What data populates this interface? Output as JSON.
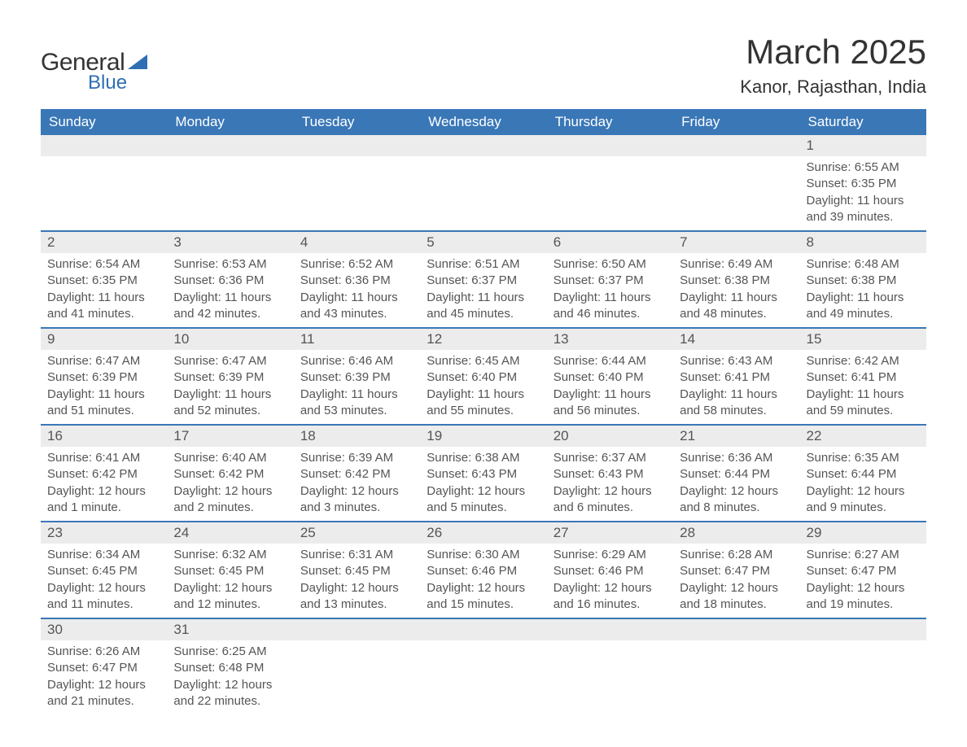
{
  "logo": {
    "text1": "General",
    "text2": "Blue"
  },
  "title": "March 2025",
  "location": "Kanor, Rajasthan, India",
  "colors": {
    "header_bg": "#3a77b7",
    "header_text": "#ffffff",
    "row_border": "#3a77b7",
    "daynum_bg": "#ececec",
    "text": "#555555",
    "logo_accent": "#2f6eb3"
  },
  "weekdays": [
    "Sunday",
    "Monday",
    "Tuesday",
    "Wednesday",
    "Thursday",
    "Friday",
    "Saturday"
  ],
  "weeks": [
    [
      null,
      null,
      null,
      null,
      null,
      null,
      {
        "n": "1",
        "sr": "6:55 AM",
        "ss": "6:35 PM",
        "dl": "11 hours and 39 minutes."
      }
    ],
    [
      {
        "n": "2",
        "sr": "6:54 AM",
        "ss": "6:35 PM",
        "dl": "11 hours and 41 minutes."
      },
      {
        "n": "3",
        "sr": "6:53 AM",
        "ss": "6:36 PM",
        "dl": "11 hours and 42 minutes."
      },
      {
        "n": "4",
        "sr": "6:52 AM",
        "ss": "6:36 PM",
        "dl": "11 hours and 43 minutes."
      },
      {
        "n": "5",
        "sr": "6:51 AM",
        "ss": "6:37 PM",
        "dl": "11 hours and 45 minutes."
      },
      {
        "n": "6",
        "sr": "6:50 AM",
        "ss": "6:37 PM",
        "dl": "11 hours and 46 minutes."
      },
      {
        "n": "7",
        "sr": "6:49 AM",
        "ss": "6:38 PM",
        "dl": "11 hours and 48 minutes."
      },
      {
        "n": "8",
        "sr": "6:48 AM",
        "ss": "6:38 PM",
        "dl": "11 hours and 49 minutes."
      }
    ],
    [
      {
        "n": "9",
        "sr": "6:47 AM",
        "ss": "6:39 PM",
        "dl": "11 hours and 51 minutes."
      },
      {
        "n": "10",
        "sr": "6:47 AM",
        "ss": "6:39 PM",
        "dl": "11 hours and 52 minutes."
      },
      {
        "n": "11",
        "sr": "6:46 AM",
        "ss": "6:39 PM",
        "dl": "11 hours and 53 minutes."
      },
      {
        "n": "12",
        "sr": "6:45 AM",
        "ss": "6:40 PM",
        "dl": "11 hours and 55 minutes."
      },
      {
        "n": "13",
        "sr": "6:44 AM",
        "ss": "6:40 PM",
        "dl": "11 hours and 56 minutes."
      },
      {
        "n": "14",
        "sr": "6:43 AM",
        "ss": "6:41 PM",
        "dl": "11 hours and 58 minutes."
      },
      {
        "n": "15",
        "sr": "6:42 AM",
        "ss": "6:41 PM",
        "dl": "11 hours and 59 minutes."
      }
    ],
    [
      {
        "n": "16",
        "sr": "6:41 AM",
        "ss": "6:42 PM",
        "dl": "12 hours and 1 minute."
      },
      {
        "n": "17",
        "sr": "6:40 AM",
        "ss": "6:42 PM",
        "dl": "12 hours and 2 minutes."
      },
      {
        "n": "18",
        "sr": "6:39 AM",
        "ss": "6:42 PM",
        "dl": "12 hours and 3 minutes."
      },
      {
        "n": "19",
        "sr": "6:38 AM",
        "ss": "6:43 PM",
        "dl": "12 hours and 5 minutes."
      },
      {
        "n": "20",
        "sr": "6:37 AM",
        "ss": "6:43 PM",
        "dl": "12 hours and 6 minutes."
      },
      {
        "n": "21",
        "sr": "6:36 AM",
        "ss": "6:44 PM",
        "dl": "12 hours and 8 minutes."
      },
      {
        "n": "22",
        "sr": "6:35 AM",
        "ss": "6:44 PM",
        "dl": "12 hours and 9 minutes."
      }
    ],
    [
      {
        "n": "23",
        "sr": "6:34 AM",
        "ss": "6:45 PM",
        "dl": "12 hours and 11 minutes."
      },
      {
        "n": "24",
        "sr": "6:32 AM",
        "ss": "6:45 PM",
        "dl": "12 hours and 12 minutes."
      },
      {
        "n": "25",
        "sr": "6:31 AM",
        "ss": "6:45 PM",
        "dl": "12 hours and 13 minutes."
      },
      {
        "n": "26",
        "sr": "6:30 AM",
        "ss": "6:46 PM",
        "dl": "12 hours and 15 minutes."
      },
      {
        "n": "27",
        "sr": "6:29 AM",
        "ss": "6:46 PM",
        "dl": "12 hours and 16 minutes."
      },
      {
        "n": "28",
        "sr": "6:28 AM",
        "ss": "6:47 PM",
        "dl": "12 hours and 18 minutes."
      },
      {
        "n": "29",
        "sr": "6:27 AM",
        "ss": "6:47 PM",
        "dl": "12 hours and 19 minutes."
      }
    ],
    [
      {
        "n": "30",
        "sr": "6:26 AM",
        "ss": "6:47 PM",
        "dl": "12 hours and 21 minutes."
      },
      {
        "n": "31",
        "sr": "6:25 AM",
        "ss": "6:48 PM",
        "dl": "12 hours and 22 minutes."
      },
      null,
      null,
      null,
      null,
      null
    ]
  ],
  "labels": {
    "sunrise": "Sunrise: ",
    "sunset": "Sunset: ",
    "daylight": "Daylight: "
  }
}
